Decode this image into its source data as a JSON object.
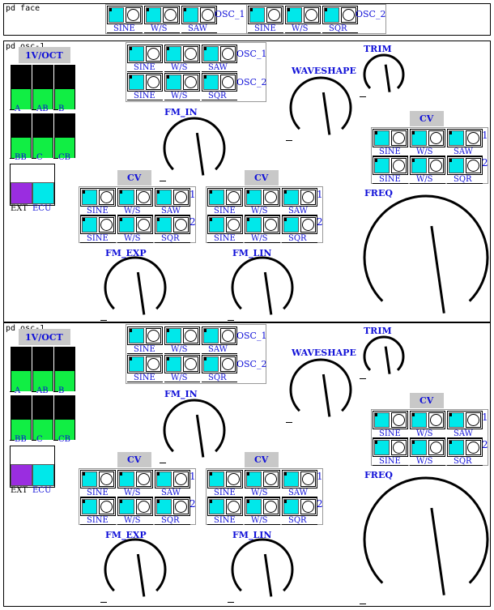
{
  "face": {
    "title": "pd face",
    "buttons": [
      {
        "label": "SINE"
      },
      {
        "label": "W/S"
      },
      {
        "label": "SAW"
      },
      {
        "label": "SINE"
      },
      {
        "label": "W/S"
      },
      {
        "label": "SQR"
      }
    ],
    "osc1_label": "OSC_1",
    "osc2_label": "OSC_2"
  },
  "osc_modules": [
    {
      "title": "pd osc-1",
      "vsl_header": "1V/OCT",
      "sliders": [
        {
          "label": "A",
          "fill": 0.45
        },
        {
          "label": "AB",
          "fill": 0.45
        },
        {
          "label": "B",
          "fill": 0.45
        },
        {
          "label": "BB",
          "fill": 0.45
        },
        {
          "label": "C",
          "fill": 0.45
        },
        {
          "label": "CB",
          "fill": 0.45
        }
      ],
      "ext_label": "EXT",
      "ecu_label": "ECU",
      "osc_select": {
        "row1": [
          "SINE",
          "W/S",
          "SAW"
        ],
        "row2": [
          "SINE",
          "W/S",
          "SQR"
        ],
        "osc1": "OSC_1",
        "osc2": "OSC_2"
      },
      "fm_in": "FM_IN",
      "waveshape": "WAVESHAPE",
      "trim": "TRIM",
      "freq": "FREQ",
      "fm_exp": "FM_EXP",
      "fm_lin": "FM_LIN",
      "cv_header": "CV",
      "cv_rows": {
        "row1": [
          "SINE",
          "W/S",
          "SAW"
        ],
        "row2": [
          "SINE",
          "W/S",
          "SQR"
        ]
      },
      "cv_nums": [
        "1",
        "2"
      ]
    },
    {
      "title": "pd osc-1",
      "vsl_header": "1V/OCT",
      "sliders": [
        {
          "label": "A",
          "fill": 0.45
        },
        {
          "label": "AB",
          "fill": 0.45
        },
        {
          "label": "B",
          "fill": 0.45
        },
        {
          "label": "BB",
          "fill": 0.45
        },
        {
          "label": "C",
          "fill": 0.45
        },
        {
          "label": "CB",
          "fill": 0.45
        }
      ],
      "ext_label": "EXT",
      "ecu_label": "ECU",
      "osc_select": {
        "row1": [
          "SINE",
          "W/S",
          "SAW"
        ],
        "row2": [
          "SINE",
          "W/S",
          "SQR"
        ],
        "osc1": "OSC_1",
        "osc2": "OSC_2"
      },
      "fm_in": "FM_IN",
      "waveshape": "WAVESHAPE",
      "trim": "TRIM",
      "freq": "FREQ",
      "fm_exp": "FM_EXP",
      "fm_lin": "FM_LIN",
      "cv_header": "CV",
      "cv_rows": {
        "row1": [
          "SINE",
          "W/S",
          "SAW"
        ],
        "row2": [
          "SINE",
          "W/S",
          "SQR"
        ]
      },
      "cv_nums": [
        "1",
        "2"
      ]
    }
  ],
  "colors": {
    "toggle": "#00e8ea",
    "slider_fill": "#11ee44",
    "ext": "#9a2de0",
    "ecu": "#00e8ea",
    "label": "#1010d8",
    "header_bg": "#c8c8c8"
  }
}
